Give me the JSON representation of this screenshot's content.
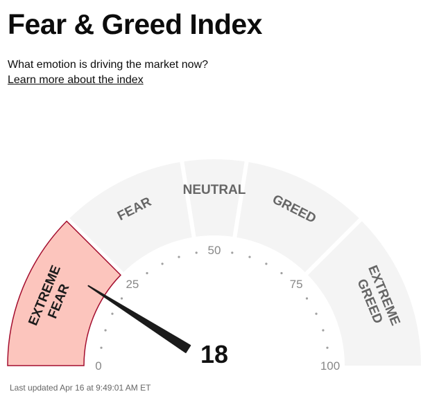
{
  "header": {
    "title": "Fear & Greed Index",
    "subtitle": "What emotion is driving the market now?",
    "learn_more_link": "Learn more about the index"
  },
  "gauge": {
    "value": 18,
    "value_label": "18",
    "range": [
      0,
      100
    ],
    "zones": [
      {
        "lines": [
          "EXTREME",
          "FEAR"
        ],
        "from": 0,
        "to": 25,
        "active": true
      },
      {
        "lines": [
          "FEAR"
        ],
        "from": 25,
        "to": 45,
        "active": false
      },
      {
        "lines": [
          "NEUTRAL"
        ],
        "from": 45,
        "to": 55,
        "active": false
      },
      {
        "lines": [
          "GREED"
        ],
        "from": 55,
        "to": 75,
        "active": false
      },
      {
        "lines": [
          "EXTREME",
          "GREED"
        ],
        "from": 75,
        "to": 100,
        "active": false
      }
    ],
    "tick_labels": [
      {
        "value": 0,
        "text": "0"
      },
      {
        "value": 25,
        "text": "25"
      },
      {
        "value": 50,
        "text": "50"
      },
      {
        "value": 75,
        "text": "75"
      },
      {
        "value": 100,
        "text": "100"
      }
    ],
    "colors": {
      "inactive_fill": "#f4f4f4",
      "active_fill": "#fcc5bd",
      "active_stroke": "#a30d2e",
      "needle": "#1b1b1b",
      "dots": "#a0a0a0"
    }
  },
  "footer": {
    "last_updated": "Last updated Apr 16 at 9:49:01 AM ET"
  }
}
